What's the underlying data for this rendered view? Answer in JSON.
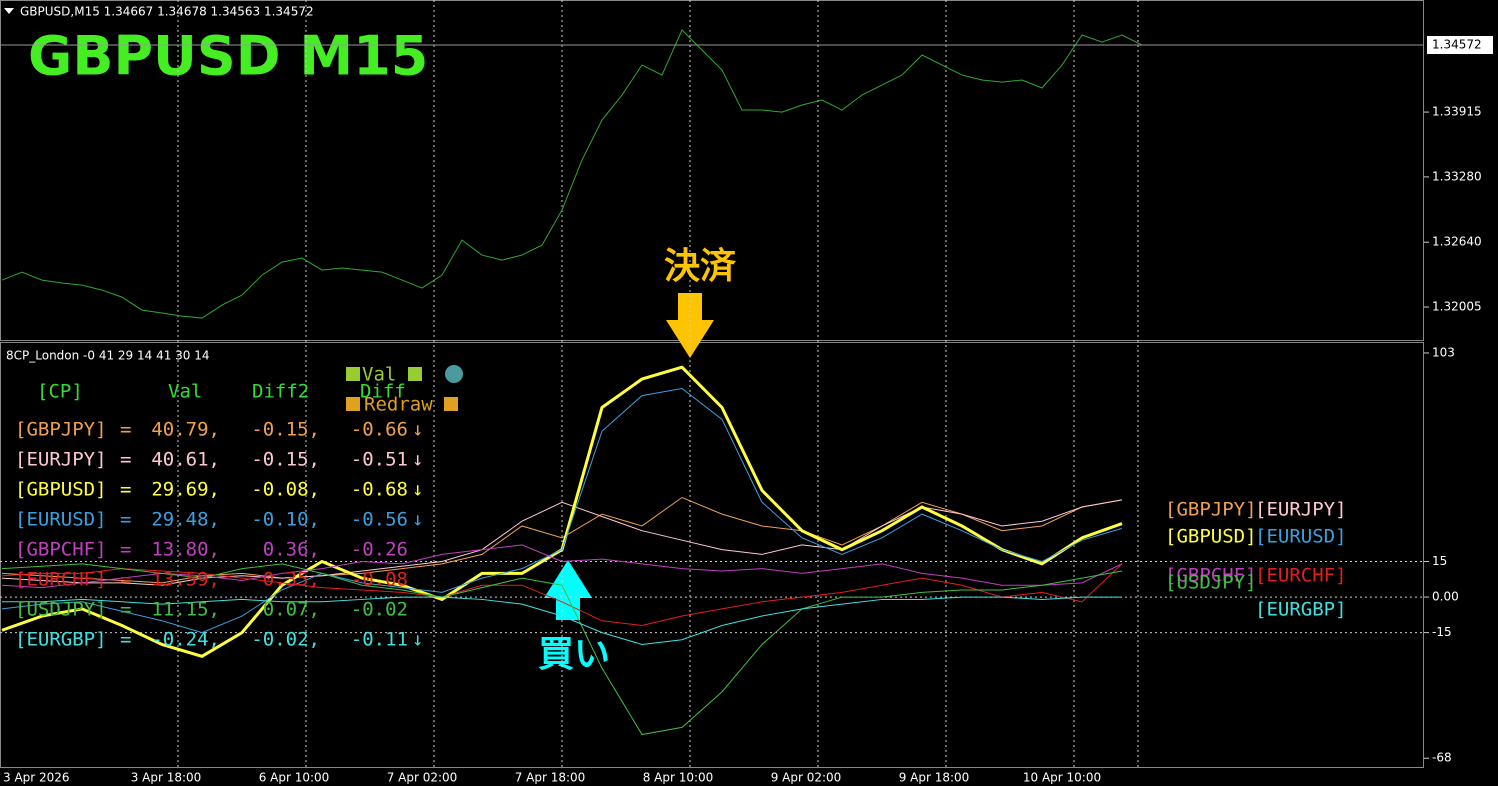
{
  "header": {
    "symbol_info": "GBPUSD,M15  1.34667 1.34678 1.34563 1.34572",
    "big_title": "GBPUSD  M15",
    "indicator_info": "8CP_London -0 41 29 14 41 30 14"
  },
  "annotations": {
    "exit": "決済",
    "buy": "買い"
  },
  "x_labels": [
    "3 Apr 2026",
    "3 Apr 18:00",
    "6 Apr 10:00",
    "7 Apr 02:00",
    "7 Apr 18:00",
    "8 Apr 10:00",
    "9 Apr 02:00",
    "9 Apr 18:00",
    "10 Apr 10:00"
  ],
  "chart_data": [
    {
      "type": "line",
      "name": "GBPUSD",
      "color": "#2fa82f",
      "ylim": [
        1.31682,
        1.35013
      ],
      "yticks": [
        1.33915,
        {
          "value": 1.3328,
          "label": "1.33280"
        },
        {
          "value": 1.3264,
          "label": "1.32640"
        },
        1.32005
      ],
      "last_price": 1.34572,
      "values": [
        1.32269,
        1.32347,
        1.32269,
        1.3224,
        1.3222,
        1.32171,
        1.32102,
        1.31975,
        1.31946,
        1.31916,
        1.31897,
        1.32024,
        1.32122,
        1.32318,
        1.32445,
        1.32485,
        1.32367,
        1.32387,
        1.32367,
        1.32347,
        1.32269,
        1.32191,
        1.32318,
        1.32661,
        1.32514,
        1.32465,
        1.32514,
        1.32612,
        1.32955,
        1.33445,
        1.33837,
        1.34082,
        1.34376,
        1.34278,
        1.34719,
        1.34523,
        1.34327,
        1.33935,
        1.33935,
        1.33915,
        1.33984,
        1.34033,
        1.33935,
        1.34082,
        1.3418,
        1.34278,
        1.34474,
        1.34376,
        1.34278,
        1.34229,
        1.34209,
        1.34229,
        1.34151,
        1.34376,
        1.3467,
        1.34601,
        1.3467,
        1.34572
      ]
    },
    {
      "type": "line",
      "ylim": [
        -71.7,
        107.2
      ],
      "yticks": [
        103,
        15,
        {
          "value": 0,
          "label": "0.00"
        },
        -15,
        -68
      ],
      "series": [
        {
          "name": "[GBPJPY]",
          "color": "#f0a050",
          "values": [
            10,
            9,
            8,
            7,
            6,
            9,
            10,
            8,
            9,
            10,
            12,
            14,
            18,
            30,
            25,
            35,
            30,
            42,
            35,
            30,
            28,
            22,
            30,
            40,
            35,
            28,
            30,
            38,
            41
          ]
        },
        {
          "name": "[EURJPY]",
          "color": "#ffc8d0",
          "values": [
            8,
            7,
            6,
            6,
            5,
            8,
            9,
            8,
            9,
            11,
            13,
            15,
            20,
            32,
            40,
            34,
            28,
            24,
            20,
            18,
            22,
            20,
            30,
            38,
            35,
            30,
            32,
            38,
            41
          ]
        },
        {
          "name": "[GBPUSD]",
          "color": "#ffff40",
          "values": [
            -14,
            -8,
            -5,
            -12,
            -20,
            -25,
            -15,
            5,
            15,
            8,
            5,
            -1,
            10,
            10,
            20,
            80,
            92,
            97,
            80,
            45,
            28,
            20,
            28,
            38,
            30,
            20,
            14,
            25,
            31
          ]
        },
        {
          "name": "[EURUSD]",
          "color": "#3aa0e0",
          "values": [
            -5,
            -3,
            -2,
            -6,
            -10,
            -15,
            -8,
            3,
            10,
            6,
            4,
            2,
            8,
            12,
            20,
            70,
            85,
            88,
            75,
            40,
            25,
            18,
            25,
            35,
            28,
            20,
            15,
            24,
            29
          ]
        },
        {
          "name": "[GBPCHF]",
          "color": "#c040c0",
          "values": [
            5,
            4,
            6,
            8,
            10,
            9,
            7,
            10,
            12,
            15,
            14,
            18,
            20,
            22,
            15,
            16,
            14,
            12,
            11,
            12,
            10,
            12,
            14,
            10,
            8,
            5,
            5,
            6,
            14
          ]
        },
        {
          "name": "[EURCHF]",
          "color": "#e02020",
          "values": [
            9,
            10,
            10,
            12,
            11,
            10,
            8,
            6,
            4,
            3,
            2,
            0,
            5,
            5,
            -2,
            -10,
            -12,
            -8,
            -5,
            -2,
            0,
            2,
            5,
            8,
            5,
            0,
            2,
            -2,
            14
          ]
        },
        {
          "name": "[USDJPY]",
          "color": "#40c040",
          "values": [
            12,
            13,
            14,
            12,
            10,
            8,
            12,
            14,
            10,
            5,
            3,
            0,
            4,
            8,
            5,
            -30,
            -58,
            -55,
            -40,
            -20,
            -5,
            0,
            0,
            2,
            3,
            3,
            5,
            8,
            11
          ]
        },
        {
          "name": "[EURGBP]",
          "color": "#40e0e0",
          "values": [
            -2,
            -2,
            -1,
            -2,
            -3,
            -2,
            -1,
            -2,
            -2,
            -1,
            0,
            0,
            -1,
            -3,
            -8,
            -15,
            -20,
            -18,
            -12,
            -8,
            -5,
            -3,
            -1,
            -1,
            0,
            0,
            -1,
            0,
            0
          ]
        }
      ]
    }
  ],
  "table": {
    "header": [
      "[CP]",
      "Val",
      "Diff2",
      "Diff"
    ],
    "buttons": [
      "Val",
      "Redraw"
    ],
    "rows": [
      [
        "[GBPJPY]",
        "=",
        "40.79,",
        "-0.15,",
        "-0.66",
        "↓"
      ],
      [
        "[EURJPY]",
        "=",
        "40.61,",
        "-0.15,",
        "-0.51",
        "↓"
      ],
      [
        "[GBPUSD]",
        "=",
        "29.69,",
        "-0.08,",
        "-0.68",
        "↓"
      ],
      [
        "[EURUSD]",
        "=",
        "29.48,",
        "-0.10,",
        "-0.56",
        "↓"
      ],
      [
        "[GBPCHF]",
        "=",
        "13.80,",
        "0.36,",
        "-0.26",
        ""
      ],
      [
        "[EURCHF]",
        "=",
        "13.59,",
        "0.35,",
        "-0.08",
        ""
      ],
      [
        "[USDJPY]",
        "=",
        "11.15,",
        "0.07,",
        "-0.02",
        ""
      ],
      [
        "[EURGBP]",
        "=",
        "-0.24,",
        "-0.02,",
        "-0.11",
        "↓"
      ]
    ]
  }
}
